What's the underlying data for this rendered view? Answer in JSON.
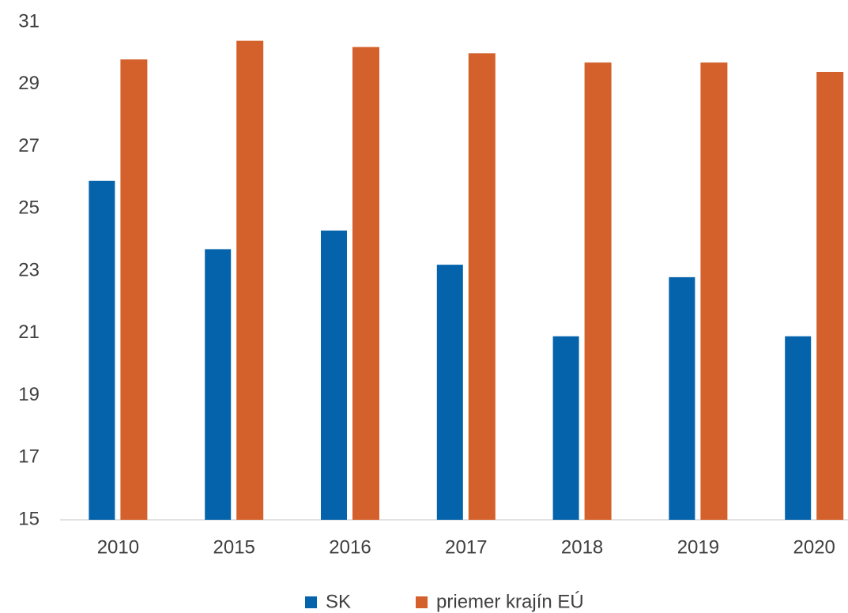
{
  "chart_data": {
    "type": "bar",
    "categories": [
      "2010",
      "2015",
      "2016",
      "2017",
      "2018",
      "2019",
      "2020"
    ],
    "series": [
      {
        "name": "SK",
        "color": "#0563ac",
        "values": [
          25.9,
          23.7,
          24.3,
          23.2,
          20.9,
          22.8,
          20.9
        ]
      },
      {
        "name": "priemer krajín EÚ",
        "color": "#d4602b",
        "values": [
          29.8,
          30.4,
          30.2,
          30.0,
          29.7,
          29.7,
          29.4
        ]
      }
    ],
    "ylim": [
      15,
      31
    ],
    "yticks": [
      15,
      17,
      19,
      21,
      23,
      25,
      27,
      29,
      31
    ],
    "grid": false,
    "legend": "bottom"
  }
}
